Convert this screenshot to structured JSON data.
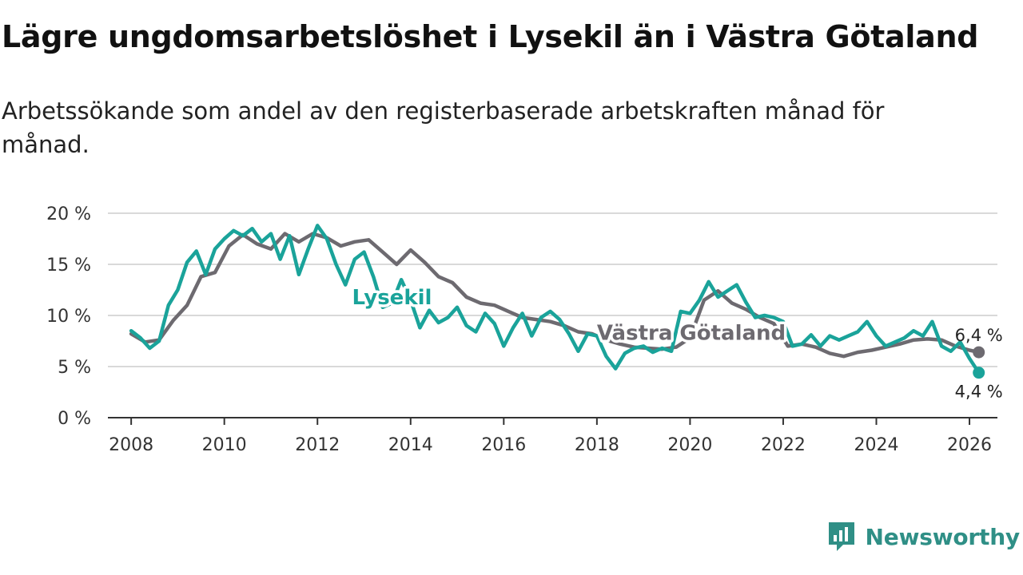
{
  "header": {
    "title": "Lägre ungdomsarbetslöshet i Lysekil än i Västra Götaland",
    "subtitle": "Arbetssökande som andel av den registerbaserade arbetskraften månad för månad."
  },
  "brand": {
    "name": "Newsworthy",
    "color": "#2f8f86"
  },
  "chart_data": {
    "type": "line",
    "title": "Lägre ungdomsarbetslöshet i Lysekil än i Västra Götaland",
    "xlabel": "",
    "ylabel": "",
    "xlim": [
      2007.5,
      2026.6
    ],
    "ylim": [
      0,
      20
    ],
    "y_ticks": [
      0,
      5,
      10,
      15,
      20
    ],
    "y_tick_labels": [
      "0 %",
      "5 %",
      "10 %",
      "15 %",
      "20 %"
    ],
    "x_ticks": [
      2008,
      2010,
      2012,
      2014,
      2016,
      2018,
      2020,
      2022,
      2024,
      2026
    ],
    "x_tick_labels": [
      "2008",
      "2010",
      "2012",
      "2014",
      "2016",
      "2018",
      "2020",
      "2022",
      "2024",
      "2026"
    ],
    "grid": true,
    "series": [
      {
        "name": "Västra Götaland",
        "color": "#6d6a70",
        "end_label": "6,4 %",
        "x": [
          2008.0,
          2008.3,
          2008.6,
          2008.9,
          2009.2,
          2009.5,
          2009.8,
          2010.1,
          2010.4,
          2010.7,
          2011.0,
          2011.3,
          2011.6,
          2011.9,
          2012.2,
          2012.5,
          2012.8,
          2013.1,
          2013.4,
          2013.7,
          2014.0,
          2014.3,
          2014.6,
          2014.9,
          2015.2,
          2015.5,
          2015.8,
          2016.1,
          2016.4,
          2016.7,
          2017.0,
          2017.3,
          2017.6,
          2017.9,
          2018.2,
          2018.5,
          2018.8,
          2019.1,
          2019.4,
          2019.7,
          2020.0,
          2020.3,
          2020.6,
          2020.9,
          2021.2,
          2021.5,
          2021.8,
          2022.1,
          2022.4,
          2022.7,
          2023.0,
          2023.3,
          2023.6,
          2023.9,
          2024.2,
          2024.5,
          2024.8,
          2025.1,
          2025.4,
          2025.7,
          2026.0,
          2026.2
        ],
        "values": [
          8.2,
          7.4,
          7.6,
          9.5,
          11.0,
          13.8,
          14.2,
          16.8,
          17.9,
          17.0,
          16.5,
          18.0,
          17.2,
          18.0,
          17.6,
          16.8,
          17.2,
          17.4,
          16.2,
          15.0,
          16.4,
          15.2,
          13.8,
          13.2,
          11.8,
          11.2,
          11.0,
          10.4,
          9.8,
          9.6,
          9.4,
          9.0,
          8.4,
          8.2,
          7.6,
          7.2,
          6.9,
          6.8,
          6.7,
          6.9,
          7.8,
          11.5,
          12.4,
          11.2,
          10.6,
          9.8,
          9.2,
          7.0,
          7.2,
          6.9,
          6.3,
          6.0,
          6.4,
          6.6,
          6.9,
          7.2,
          7.6,
          7.7,
          7.6,
          7.0,
          6.6,
          6.4
        ]
      },
      {
        "name": "Lysekil",
        "color": "#1aa39a",
        "end_label": "4,4 %",
        "x": [
          2008.0,
          2008.2,
          2008.4,
          2008.6,
          2008.8,
          2009.0,
          2009.2,
          2009.4,
          2009.6,
          2009.8,
          2010.0,
          2010.2,
          2010.4,
          2010.6,
          2010.8,
          2011.0,
          2011.2,
          2011.4,
          2011.6,
          2011.8,
          2012.0,
          2012.2,
          2012.4,
          2012.6,
          2012.8,
          2013.0,
          2013.2,
          2013.4,
          2013.6,
          2013.8,
          2014.0,
          2014.2,
          2014.4,
          2014.6,
          2014.8,
          2015.0,
          2015.2,
          2015.4,
          2015.6,
          2015.8,
          2016.0,
          2016.2,
          2016.4,
          2016.6,
          2016.8,
          2017.0,
          2017.2,
          2017.4,
          2017.6,
          2017.8,
          2018.0,
          2018.2,
          2018.4,
          2018.6,
          2018.8,
          2019.0,
          2019.2,
          2019.4,
          2019.6,
          2019.8,
          2020.0,
          2020.2,
          2020.4,
          2020.6,
          2020.8,
          2021.0,
          2021.2,
          2021.4,
          2021.6,
          2021.8,
          2022.0,
          2022.2,
          2022.4,
          2022.6,
          2022.8,
          2023.0,
          2023.2,
          2023.4,
          2023.6,
          2023.8,
          2024.0,
          2024.2,
          2024.4,
          2024.6,
          2024.8,
          2025.0,
          2025.2,
          2025.4,
          2025.6,
          2025.8,
          2026.0,
          2026.2
        ],
        "values": [
          8.5,
          7.8,
          6.8,
          7.5,
          11.0,
          12.5,
          15.2,
          16.3,
          14.0,
          16.5,
          17.5,
          18.3,
          17.8,
          18.5,
          17.2,
          18.0,
          15.5,
          17.8,
          14.0,
          16.5,
          18.8,
          17.5,
          15.0,
          13.0,
          15.5,
          16.2,
          13.8,
          10.8,
          11.2,
          13.5,
          11.5,
          8.8,
          10.5,
          9.3,
          9.8,
          10.8,
          9.0,
          8.4,
          10.2,
          9.2,
          7.0,
          8.8,
          10.2,
          8.0,
          9.8,
          10.4,
          9.6,
          8.2,
          6.5,
          8.2,
          8.0,
          6.0,
          4.8,
          6.3,
          6.8,
          7.0,
          6.4,
          6.8,
          6.5,
          10.4,
          10.2,
          11.5,
          13.3,
          11.8,
          12.4,
          13.0,
          11.3,
          9.8,
          10.0,
          9.8,
          9.4,
          7.0,
          7.2,
          8.1,
          7.0,
          8.0,
          7.6,
          8.0,
          8.4,
          9.4,
          8.0,
          7.0,
          7.4,
          7.8,
          8.5,
          8.0,
          9.4,
          7.0,
          6.5,
          7.4,
          5.8,
          4.4
        ]
      }
    ],
    "annotations": [
      {
        "text": "Lysekil",
        "series": "Lysekil"
      },
      {
        "text": "Västra Götaland",
        "series": "Västra Götaland"
      }
    ]
  }
}
